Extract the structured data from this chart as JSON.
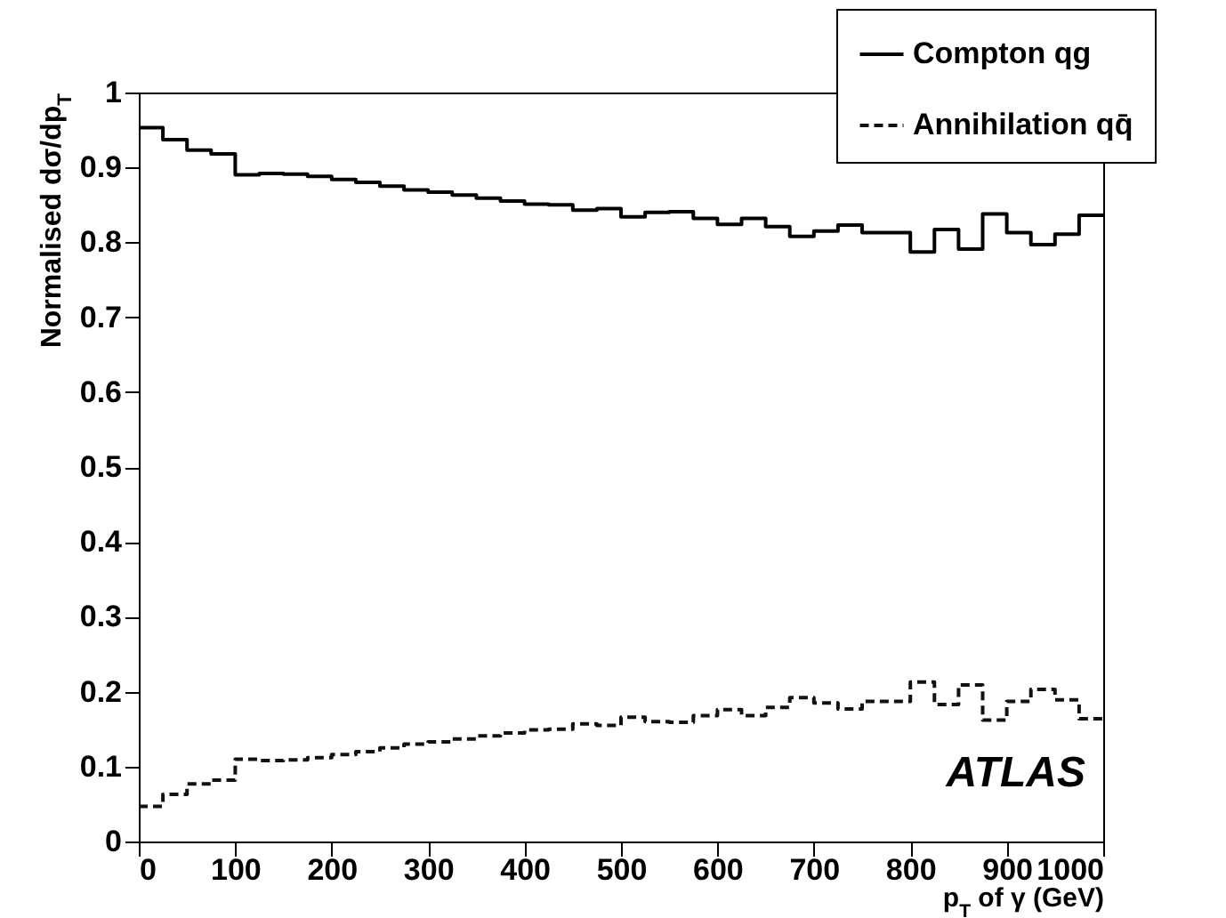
{
  "chart_data": {
    "type": "histogram",
    "xlabel": "p$_{T}$ of γ (GeV)",
    "ylabel": "Normalised dσ/dp$_{T}$",
    "bins": [
      0,
      25,
      50,
      75,
      100,
      125,
      150,
      175,
      200,
      225,
      250,
      275,
      300,
      325,
      350,
      375,
      400,
      425,
      450,
      475,
      500,
      525,
      550,
      575,
      600,
      625,
      650,
      675,
      700,
      725,
      750,
      775,
      800,
      825,
      850,
      875,
      900,
      925,
      950,
      975,
      1000
    ],
    "series": [
      {
        "name": "Compton qg",
        "color": "#000000",
        "line_style": "solid",
        "values": [
          0.953,
          0.937,
          0.923,
          0.918,
          0.89,
          0.892,
          0.891,
          0.888,
          0.884,
          0.88,
          0.875,
          0.87,
          0.867,
          0.863,
          0.859,
          0.855,
          0.851,
          0.85,
          0.843,
          0.845,
          0.834,
          0.84,
          0.841,
          0.832,
          0.824,
          0.832,
          0.821,
          0.808,
          0.815,
          0.823,
          0.813,
          0.813,
          0.787,
          0.817,
          0.791,
          0.838,
          0.813,
          0.797,
          0.811,
          0.836
        ]
      },
      {
        "name": "Annihilation qq̄",
        "color": "#111111",
        "line_style": "dotted",
        "values": [
          0.047,
          0.063,
          0.077,
          0.082,
          0.11,
          0.108,
          0.109,
          0.112,
          0.116,
          0.12,
          0.125,
          0.13,
          0.133,
          0.137,
          0.141,
          0.145,
          0.149,
          0.15,
          0.157,
          0.155,
          0.166,
          0.16,
          0.159,
          0.168,
          0.176,
          0.168,
          0.179,
          0.192,
          0.185,
          0.177,
          0.187,
          0.187,
          0.213,
          0.183,
          0.209,
          0.162,
          0.187,
          0.203,
          0.189,
          0.164
        ]
      }
    ],
    "xlim": [
      0,
      1000
    ],
    "xticks": [
      0,
      100,
      200,
      300,
      400,
      500,
      600,
      700,
      800,
      900,
      1000
    ],
    "ylim": [
      0,
      1
    ],
    "yticks": [
      0,
      0.1,
      0.2,
      0.3,
      0.4,
      0.5,
      0.6,
      0.7,
      0.8,
      0.9,
      1
    ],
    "legend": "top right",
    "grid": false,
    "annotations": [
      "ATLAS"
    ]
  }
}
